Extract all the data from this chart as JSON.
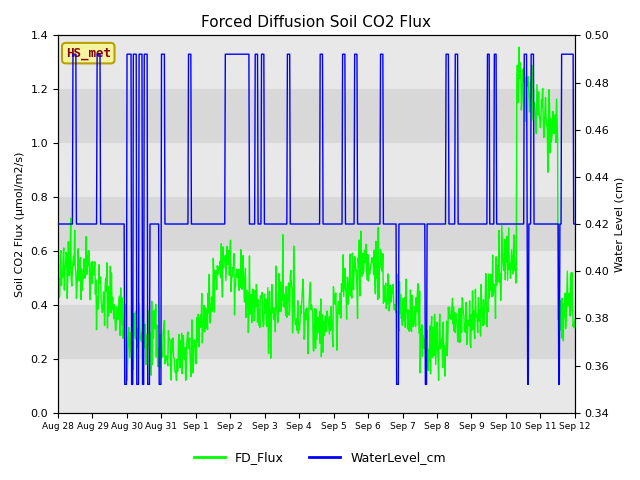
{
  "title": "Forced Diffusion Soil CO2 Flux",
  "ylabel_left": "Soil CO2 Flux (μmol/m2/s)",
  "ylabel_right": "Water Level (cm)",
  "ylim_left": [
    0.0,
    1.4
  ],
  "ylim_right": [
    0.34,
    0.5
  ],
  "yticks_left": [
    0.0,
    0.2,
    0.4,
    0.6,
    0.8,
    1.0,
    1.2,
    1.4
  ],
  "yticks_right": [
    0.34,
    0.36,
    0.38,
    0.4,
    0.42,
    0.44,
    0.46,
    0.48,
    0.5
  ],
  "xtick_labels": [
    "Aug 28",
    "Aug 29",
    "Aug 30",
    "Aug 31",
    "Sep 1",
    "Sep 2",
    "Sep 3",
    "Sep 4",
    "Sep 5",
    "Sep 6",
    "Sep 7",
    "Sep 8",
    "Sep 9",
    "Sep 10",
    "Sep 11",
    "Sep 12"
  ],
  "fd_flux_color": "#00ff00",
  "water_color": "#0000ff",
  "background_color": "#e8e8e8",
  "plot_bg_color": "#d8d8d8",
  "legend_label_flux": "FD_Flux",
  "legend_label_water": "WaterLevel_cm",
  "annotation_text": "HS_met",
  "annotation_color": "#8b0000",
  "annotation_bg": "#f5f5a0",
  "annotation_border": "#b8a000",
  "wl_baseline": 0.42,
  "wl_high": 0.492,
  "wl_low": 0.352
}
